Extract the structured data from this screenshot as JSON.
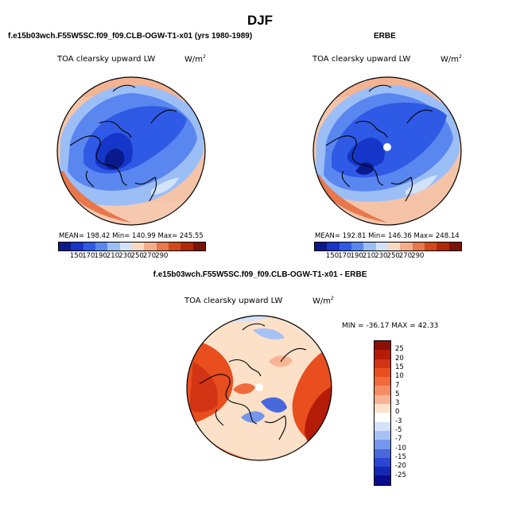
{
  "figure": {
    "season": "DJF",
    "variable": "TOA clearsky upward LW",
    "units_base": "W/m",
    "units_exp": "2"
  },
  "panels": [
    {
      "header": "f.e15b03wch.F55W5SC.f09_f09.CLB-OGW-T1-x01 (yrs 1980-1989)",
      "stats": "MEAN= 198.42   Min= 140.99   Max= 245.55",
      "ticks": [
        "150",
        "170",
        "190",
        "210",
        "230",
        "250",
        "270",
        "290"
      ]
    },
    {
      "header": "ERBE",
      "stats": "MEAN= 192.81   Min= 146.36   Max= 248.14",
      "ticks": [
        "150",
        "170",
        "190",
        "210",
        "230",
        "250",
        "270",
        "290"
      ]
    }
  ],
  "diff": {
    "header": "f.e15b03wch.F55W5SC.f09_f09.CLB-OGW-T1-x01 - ERBE",
    "minmax": "MIN = -36.17 MAX =  42.33",
    "ticks": [
      "25",
      "20",
      "15",
      "10",
      "7",
      "5",
      "3",
      "0",
      "-3",
      "-5",
      "-7",
      "-10",
      "-15",
      "-20",
      "-25"
    ]
  },
  "colors": {
    "abs_scale": [
      "#0a1a8c",
      "#1536c8",
      "#2e5ae6",
      "#5a86f0",
      "#9cbef7",
      "#d2e2f8",
      "#f8d9c4",
      "#f3ad8c",
      "#e8774c",
      "#d24818",
      "#b02a08",
      "#7c1204"
    ],
    "diff_scale": [
      "#8c1004",
      "#b41c08",
      "#d23414",
      "#e84e1e",
      "#f06a3c",
      "#f48c64",
      "#f8b494",
      "#fde0c8",
      "#ffffff",
      "#d2e2f8",
      "#a6c2f4",
      "#7496ec",
      "#4868dc",
      "#2a46d2",
      "#1428b4",
      "#0a0a8c"
    ]
  }
}
